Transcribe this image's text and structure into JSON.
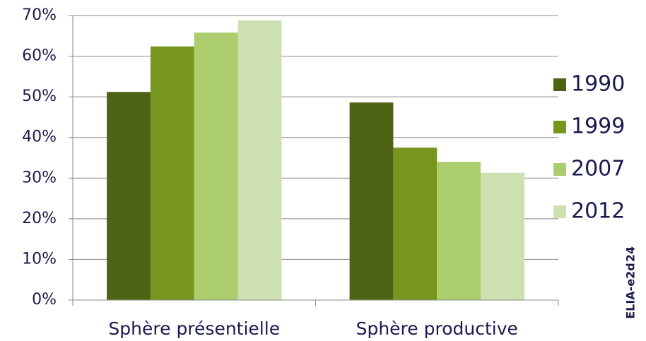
{
  "chart_data": {
    "type": "bar",
    "categories": [
      "Sphère présentielle",
      "Sphère productive"
    ],
    "series": [
      {
        "name": "1990",
        "color": "#4e6414",
        "values": [
          51.2,
          48.6
        ]
      },
      {
        "name": "1999",
        "color": "#76961e",
        "values": [
          62.4,
          37.5
        ]
      },
      {
        "name": "2007",
        "color": "#accd6e",
        "values": [
          65.8,
          34.0
        ]
      },
      {
        "name": "2012",
        "color": "#cde0b0",
        "values": [
          68.8,
          31.3
        ]
      }
    ],
    "ylim": [
      0,
      70
    ],
    "yticks": [
      {
        "value": 0,
        "label": "0%"
      },
      {
        "value": 10,
        "label": "10%"
      },
      {
        "value": 20,
        "label": "20%"
      },
      {
        "value": 30,
        "label": "30%"
      },
      {
        "value": 40,
        "label": "40%"
      },
      {
        "value": 50,
        "label": "50%"
      },
      {
        "value": 60,
        "label": "60%"
      },
      {
        "value": 70,
        "label": "70%"
      }
    ],
    "grid": true,
    "legend": "right",
    "annotations": [
      "ELIA-e2d",
      "24"
    ]
  }
}
